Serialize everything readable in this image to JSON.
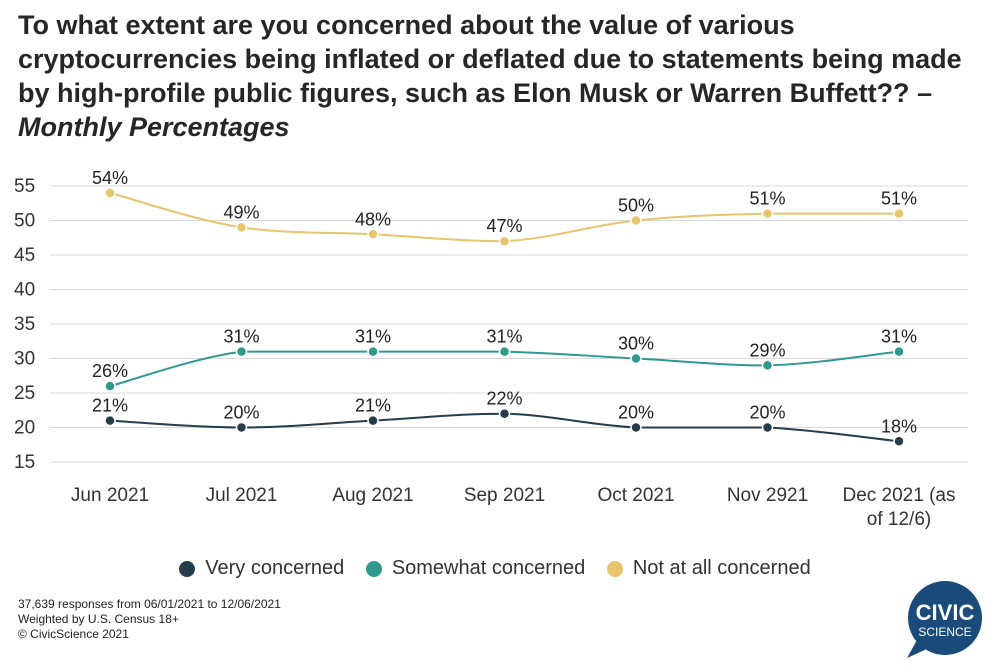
{
  "title": "To what extent are you concerned about the value of various cryptocurrencies being inflated or deflated due to statements being made by high-profile public figures, such as Elon Musk or Warren Buffett??",
  "subtitle": "– Monthly Percentages",
  "chart_data": {
    "type": "line",
    "categories": [
      "Jun 2021",
      "Jul 2021",
      "Aug 2021",
      "Sep 2021",
      "Oct 2021",
      "Nov 2921",
      "Dec 2021 (as of 12/6)"
    ],
    "category_lines": [
      [
        "Jun 2021"
      ],
      [
        "Jul 2021"
      ],
      [
        "Aug 2021"
      ],
      [
        "Sep 2021"
      ],
      [
        "Oct 2021"
      ],
      [
        "Nov 2921"
      ],
      [
        "Dec 2021 (as",
        "of 12/6)"
      ]
    ],
    "y_ticks": [
      15,
      20,
      25,
      30,
      35,
      40,
      45,
      50,
      55
    ],
    "ylim": [
      15,
      55
    ],
    "grid": true,
    "legend_position": "bottom",
    "series": [
      {
        "name": "Very concerned",
        "color": "#253d4a",
        "values": [
          21,
          20,
          21,
          22,
          20,
          20,
          18
        ]
      },
      {
        "name": "Somewhat concerned",
        "color": "#2e9a8f",
        "values": [
          26,
          31,
          31,
          31,
          30,
          29,
          31
        ]
      },
      {
        "name": "Not at all concerned",
        "color": "#e8c46a",
        "values": [
          54,
          49,
          48,
          47,
          50,
          51,
          51
        ]
      }
    ]
  },
  "footer": {
    "line1": "37,639 responses from 06/01/2021 to 12/06/2021",
    "line2": "Weighted by U.S. Census 18+",
    "line3": "© CivicScience 2021"
  },
  "logo": {
    "line1": "CIVIC",
    "line2": "SCIENCE",
    "color": "#1a4b7a"
  }
}
